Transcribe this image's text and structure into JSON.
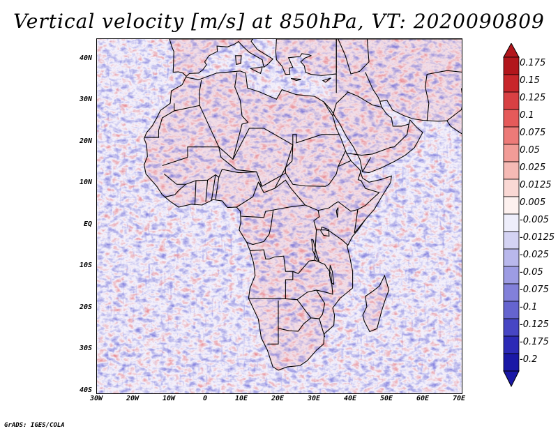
{
  "title": "Vertical velocity [m/s] at 850hPa, VT: 2020090809",
  "footer": "GrADS: IGES/COLA",
  "axes": {
    "lat_labels": [
      "40N",
      "30N",
      "20N",
      "10N",
      "EQ",
      "10S",
      "20S",
      "30S",
      "40S"
    ],
    "lon_labels": [
      "30W",
      "20W",
      "10W",
      "0",
      "10E",
      "20E",
      "30E",
      "40E",
      "50E",
      "60E",
      "70E"
    ]
  },
  "colorbar": {
    "labels": [
      "0.175",
      "0.15",
      "0.125",
      "0.1",
      "0.075",
      "0.05",
      "0.025",
      "0.0125",
      "0.005",
      "-0.005",
      "-0.0125",
      "-0.025",
      "-0.05",
      "-0.075",
      "-0.1",
      "-0.125",
      "-0.175",
      "-0.2"
    ],
    "colors": [
      "#b2161c",
      "#c8262b",
      "#d84043",
      "#e55a5a",
      "#ed7a78",
      "#f29c97",
      "#f6bab5",
      "#fad8d4",
      "#fdf1ef",
      "#eeeefb",
      "#d4d3f3",
      "#b9b8ec",
      "#9d9ce3",
      "#8280da",
      "#6564cf",
      "#4746c4",
      "#2c2ab6",
      "#1a18a6"
    ]
  },
  "map": {
    "ocean_color": "#f3f0fb",
    "land_color": "#f2dde6",
    "outline_color": "#000000"
  }
}
